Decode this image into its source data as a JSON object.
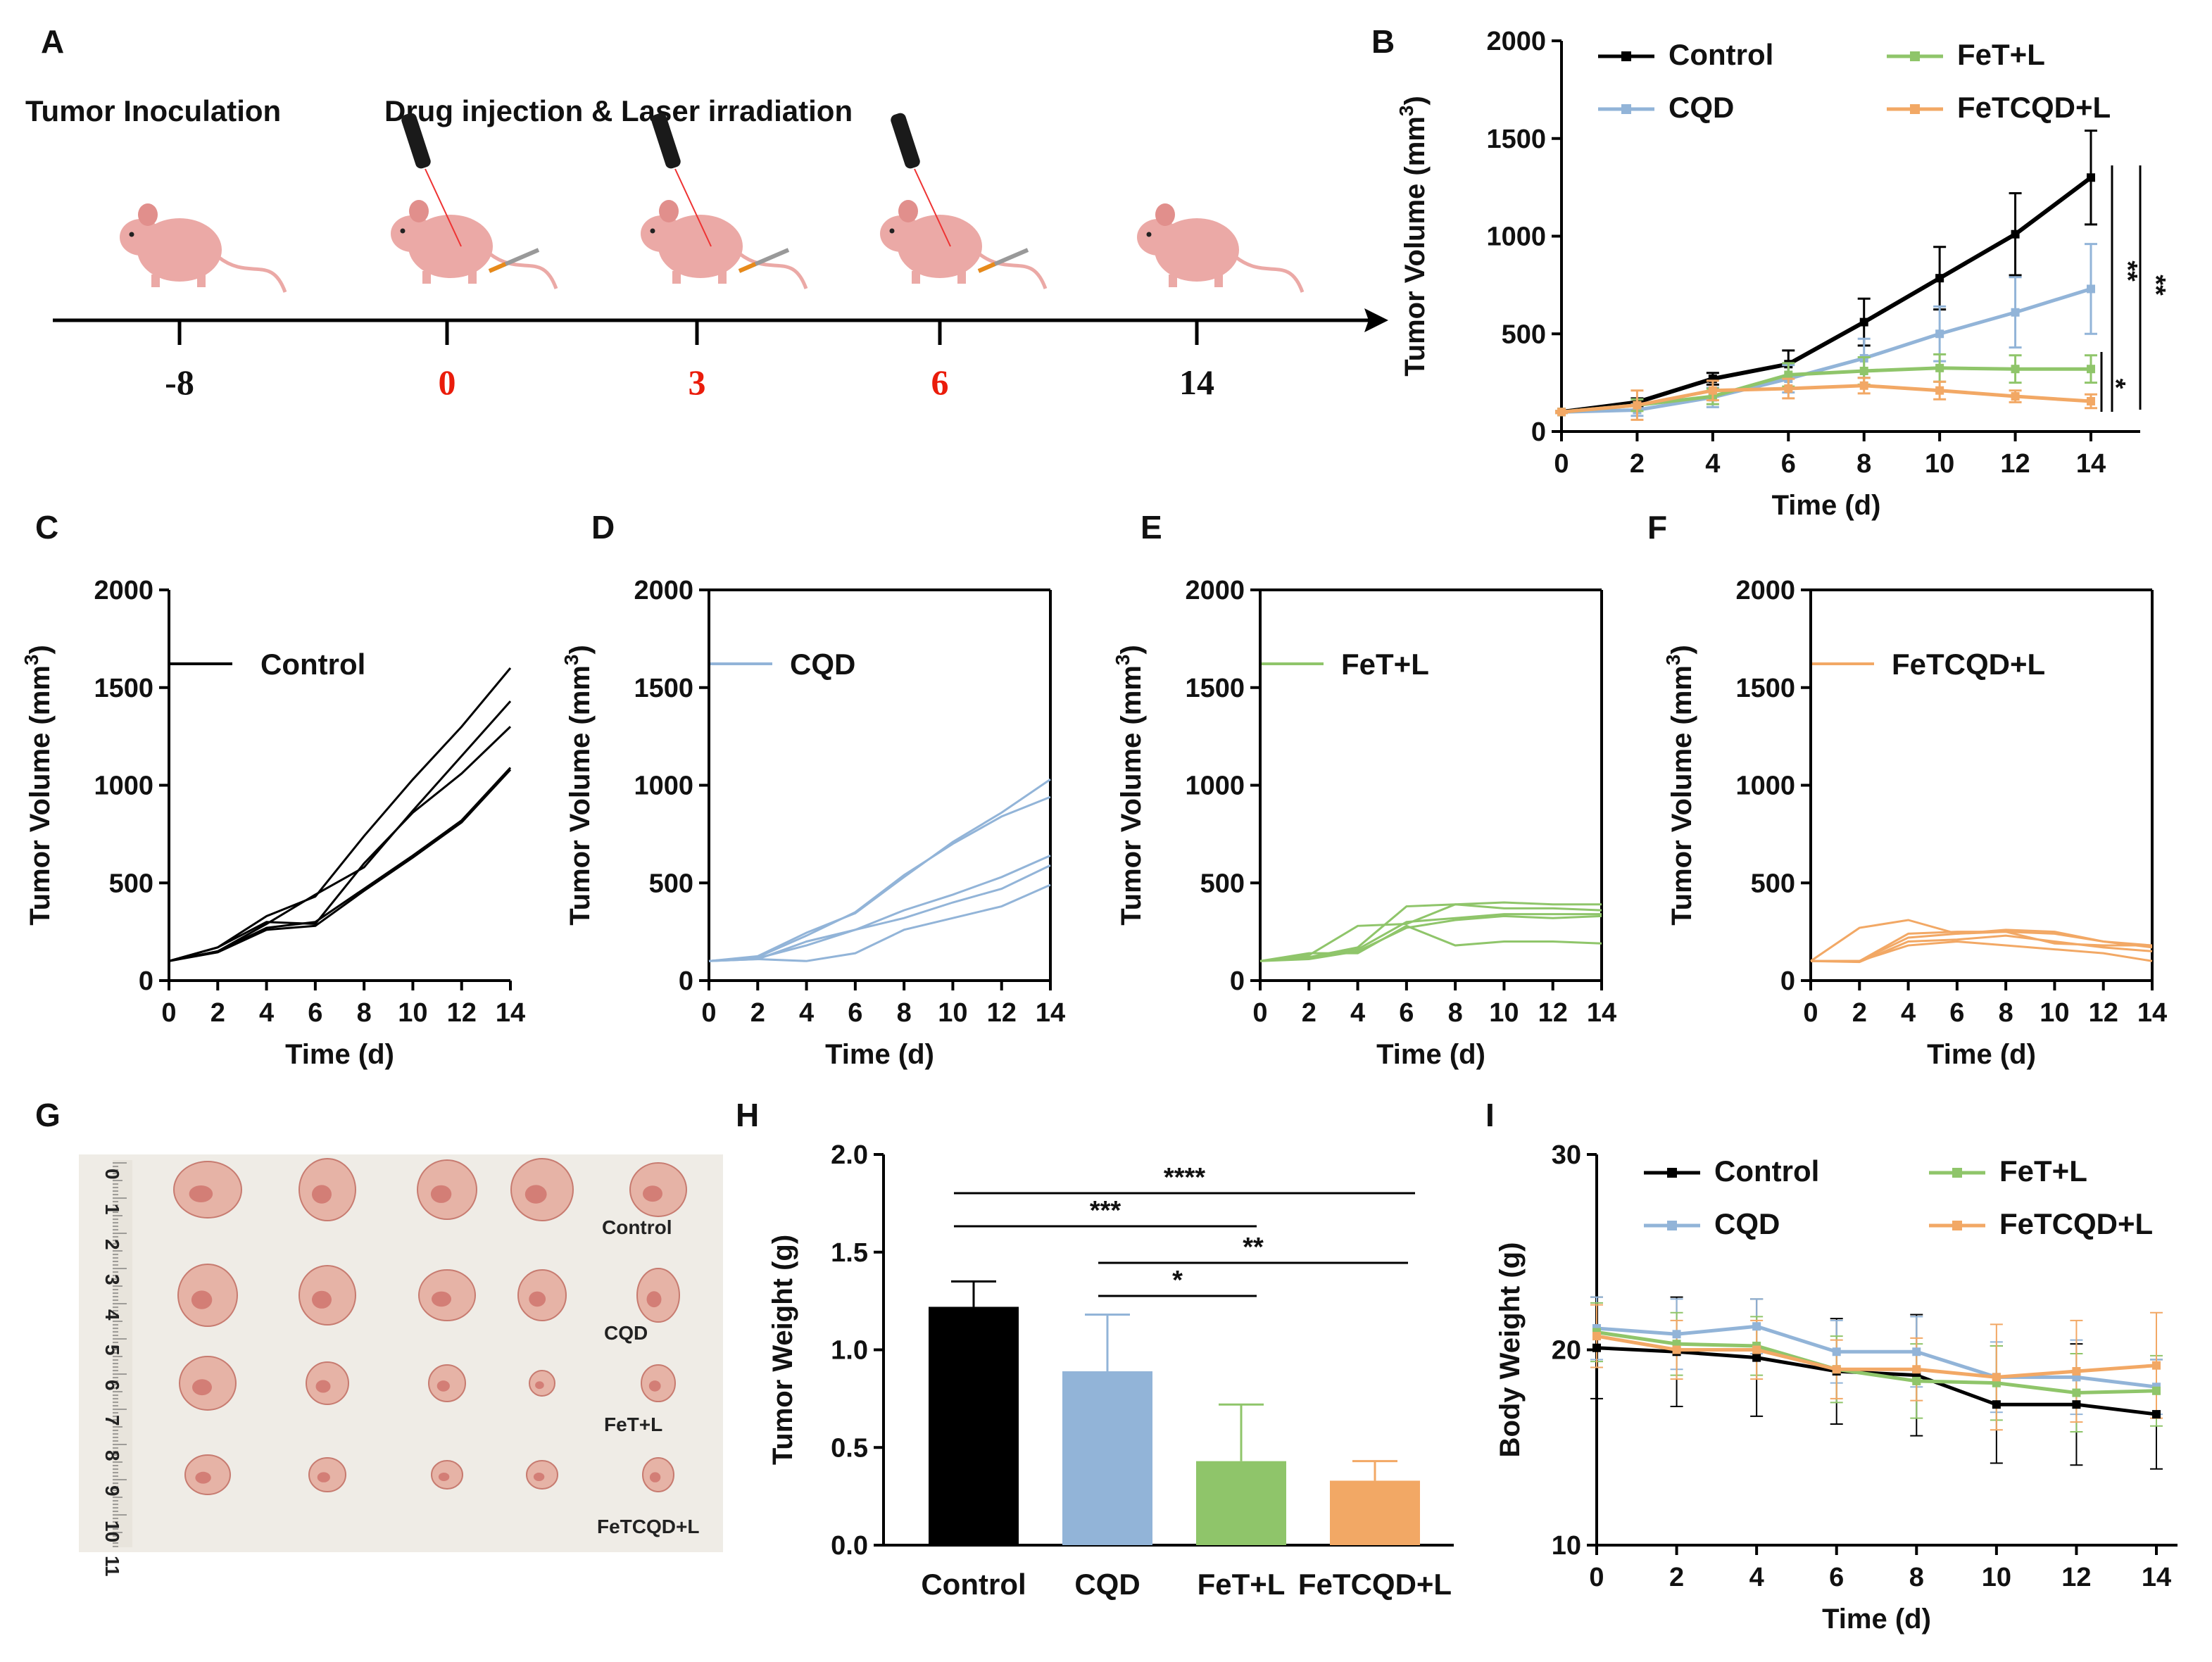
{
  "colors": {
    "control": "#000000",
    "cqd": "#92b4d8",
    "fetl": "#8fc56a",
    "fetcqdl": "#f2a865",
    "red": "#ea1c0b",
    "mouse": "#eba9a6",
    "axis": "#000000"
  },
  "panels": {
    "A": "A",
    "B": "B",
    "C": "C",
    "D": "D",
    "E": "E",
    "F": "F",
    "G": "G",
    "H": "H",
    "I": "I"
  },
  "timeline": {
    "left_label": "Tumor Inoculation",
    "right_label": "Drug injection & Laser irradiation",
    "days": [
      {
        "label": "-8",
        "red": false
      },
      {
        "label": "0",
        "red": true
      },
      {
        "label": "3",
        "red": true
      },
      {
        "label": "6",
        "red": true
      },
      {
        "label": "14",
        "red": false
      }
    ],
    "icons": [
      "mouse-icon",
      "laser-icon",
      "syringe-icon"
    ]
  },
  "photo": {
    "row_labels": [
      "Control",
      "CQD",
      "FeT+L",
      "FeTCQD+L"
    ],
    "ruler_numbers": [
      "0",
      "1",
      "2",
      "3",
      "4",
      "5",
      "6",
      "7",
      "8",
      "9",
      "10",
      "11"
    ]
  },
  "chart_data": [
    {
      "id": "B",
      "type": "line",
      "ylabel": "Tumor Volume (mm³)",
      "ylabel_main": "Tumor Volume (mm",
      "ylabel_sup": "3",
      "ylabel_close": ")",
      "xlabel": "Time (d)",
      "x": [
        0,
        2,
        4,
        6,
        8,
        10,
        12,
        14
      ],
      "ylim": [
        0,
        2000
      ],
      "yticks": [
        "0",
        "500",
        "1000",
        "1500",
        "2000"
      ],
      "xticks": [
        "0",
        "2",
        "4",
        "6",
        "8",
        "10",
        "12",
        "14"
      ],
      "legend": [
        "Control",
        "CQD",
        "FeT+L",
        "FeTCQD+L"
      ],
      "series": [
        {
          "name": "Control",
          "values": [
            100,
            150,
            270,
            345,
            560,
            785,
            1010,
            1300
          ],
          "errors": [
            5,
            20,
            30,
            70,
            120,
            160,
            210,
            240
          ]
        },
        {
          "name": "CQD",
          "values": [
            100,
            110,
            175,
            270,
            375,
            500,
            610,
            730
          ],
          "errors": [
            5,
            30,
            50,
            70,
            100,
            140,
            180,
            230
          ]
        },
        {
          "name": "FeT+L",
          "values": [
            100,
            135,
            180,
            290,
            310,
            325,
            320,
            320
          ],
          "errors": [
            5,
            30,
            40,
            60,
            70,
            70,
            70,
            70
          ]
        },
        {
          "name": "FeTCQD+L",
          "values": [
            100,
            135,
            210,
            220,
            235,
            210,
            180,
            155
          ],
          "errors": [
            5,
            75,
            50,
            50,
            40,
            45,
            30,
            35
          ]
        }
      ],
      "significance": [
        "**",
        "**",
        "*"
      ]
    },
    {
      "id": "C",
      "type": "line",
      "legend": "Control",
      "ylabel_main": "Tumor Volume (mm",
      "ylabel_sup": "3",
      "ylabel_close": ")",
      "xlabel": "Time (d)",
      "x": [
        0,
        2,
        4,
        6,
        8,
        10,
        12,
        14
      ],
      "ylim": [
        0,
        2000
      ],
      "yticks": [
        "0",
        "500",
        "1000",
        "1500",
        "2000"
      ],
      "xticks": [
        "0",
        "2",
        "4",
        "6",
        "8",
        "10",
        "12",
        "14"
      ],
      "series": [
        {
          "values": [
            100,
            170,
            330,
            430,
            740,
            1030,
            1300,
            1600
          ]
        },
        {
          "values": [
            100,
            150,
            290,
            440,
            580,
            870,
            1150,
            1430
          ]
        },
        {
          "values": [
            100,
            170,
            300,
            290,
            600,
            860,
            1060,
            1300
          ]
        },
        {
          "values": [
            100,
            150,
            270,
            300,
            470,
            640,
            820,
            1090
          ]
        },
        {
          "values": [
            100,
            145,
            260,
            280,
            460,
            630,
            810,
            1080
          ]
        }
      ]
    },
    {
      "id": "D",
      "type": "line",
      "legend": "CQD",
      "ylabel_main": "Tumor Volume (mm",
      "ylabel_sup": "3",
      "ylabel_close": ")",
      "xlabel": "Time (d)",
      "x": [
        0,
        2,
        4,
        6,
        8,
        10,
        12,
        14
      ],
      "ylim": [
        0,
        2000
      ],
      "yticks": [
        "0",
        "500",
        "1000",
        "1500",
        "2000"
      ],
      "xticks": [
        "0",
        "2",
        "4",
        "6",
        "8",
        "10",
        "12",
        "14"
      ],
      "series": [
        {
          "values": [
            100,
            125,
            245,
            345,
            530,
            710,
            860,
            1030
          ]
        },
        {
          "values": [
            100,
            120,
            230,
            350,
            540,
            700,
            840,
            940
          ]
        },
        {
          "values": [
            100,
            110,
            200,
            260,
            360,
            440,
            530,
            640
          ]
        },
        {
          "values": [
            100,
            115,
            180,
            260,
            320,
            400,
            470,
            590
          ]
        },
        {
          "values": [
            100,
            110,
            100,
            140,
            260,
            320,
            380,
            490
          ]
        }
      ]
    },
    {
      "id": "E",
      "type": "line",
      "legend": "FeT+L",
      "ylabel_main": "Tumor Volume (mm",
      "ylabel_sup": "3",
      "ylabel_close": ")",
      "xlabel": "Time (d)",
      "x": [
        0,
        2,
        4,
        6,
        8,
        10,
        12,
        14
      ],
      "ylim": [
        0,
        2000
      ],
      "yticks": [
        "0",
        "500",
        "1000",
        "1500",
        "2000"
      ],
      "xticks": [
        "0",
        "2",
        "4",
        "6",
        "8",
        "10",
        "12",
        "14"
      ],
      "series": [
        {
          "values": [
            100,
            130,
            280,
            290,
            390,
            400,
            390,
            390
          ]
        },
        {
          "values": [
            100,
            120,
            170,
            380,
            390,
            370,
            370,
            360
          ]
        },
        {
          "values": [
            100,
            120,
            160,
            300,
            320,
            340,
            340,
            340
          ]
        },
        {
          "values": [
            100,
            110,
            150,
            270,
            310,
            330,
            320,
            330
          ]
        },
        {
          "values": [
            100,
            140,
            140,
            280,
            180,
            200,
            200,
            190
          ]
        }
      ]
    },
    {
      "id": "F",
      "type": "line",
      "legend": "FeTCQD+L",
      "ylabel_main": "Tumor Volume (mm",
      "ylabel_sup": "3",
      "ylabel_close": ")",
      "xlabel": "Time (d)",
      "x": [
        0,
        2,
        4,
        6,
        8,
        10,
        12,
        14
      ],
      "ylim": [
        0,
        2000
      ],
      "yticks": [
        "0",
        "500",
        "1000",
        "1500",
        "2000"
      ],
      "xticks": [
        "0",
        "2",
        "4",
        "6",
        "8",
        "10",
        "12",
        "14"
      ],
      "series": [
        {
          "values": [
            100,
            270,
            310,
            240,
            260,
            250,
            200,
            170
          ]
        },
        {
          "values": [
            100,
            100,
            240,
            250,
            250,
            240,
            200,
            180
          ]
        },
        {
          "values": [
            100,
            100,
            220,
            240,
            250,
            190,
            180,
            180
          ]
        },
        {
          "values": [
            100,
            95,
            200,
            210,
            230,
            200,
            170,
            150
          ]
        },
        {
          "values": [
            100,
            100,
            180,
            200,
            180,
            160,
            140,
            100
          ]
        }
      ]
    },
    {
      "id": "H",
      "type": "bar",
      "ylabel": "Tumor Weight (g)",
      "categories": [
        "Control",
        "CQD",
        "FeT+L",
        "FeTCQD+L"
      ],
      "values": [
        1.22,
        0.89,
        0.43,
        0.33
      ],
      "errors": [
        0.13,
        0.29,
        0.29,
        0.1
      ],
      "ylim": [
        0,
        2.0
      ],
      "yticks": [
        "0.0",
        "0.5",
        "1.0",
        "1.5",
        "2.0"
      ],
      "significance": [
        {
          "label": "****",
          "from": 0,
          "to": 3
        },
        {
          "label": "***",
          "from": 0,
          "to": 2
        },
        {
          "label": "**",
          "from": 1,
          "to": 3
        },
        {
          "label": "*",
          "from": 1,
          "to": 2
        }
      ]
    },
    {
      "id": "I",
      "type": "line",
      "ylabel": "Body Weight (g)",
      "xlabel": "Time (d)",
      "x": [
        0,
        2,
        4,
        6,
        8,
        10,
        12,
        14
      ],
      "ylim": [
        10,
        30
      ],
      "yticks": [
        "10",
        "20",
        "30"
      ],
      "xticks": [
        "0",
        "2",
        "4",
        "6",
        "8",
        "10",
        "12",
        "14"
      ],
      "legend": [
        "Control",
        "CQD",
        "FeT+L",
        "FeTCQD+L"
      ],
      "series": [
        {
          "name": "Control",
          "values": [
            20.1,
            19.9,
            19.6,
            18.9,
            18.7,
            17.2,
            17.2,
            16.7
          ],
          "errors": [
            2.6,
            2.8,
            3.0,
            2.7,
            3.1,
            3.0,
            3.1,
            2.8
          ]
        },
        {
          "name": "CQD",
          "values": [
            21.1,
            20.8,
            21.2,
            19.9,
            19.9,
            18.6,
            18.6,
            18.1
          ],
          "errors": [
            1.6,
            1.8,
            1.4,
            1.6,
            1.8,
            1.8,
            1.9,
            1.4
          ]
        },
        {
          "name": "FeT+L",
          "values": [
            20.9,
            20.3,
            20.2,
            19.0,
            18.4,
            18.3,
            17.8,
            17.9
          ],
          "errors": [
            1.5,
            1.6,
            1.5,
            1.7,
            1.9,
            1.9,
            2.0,
            1.8
          ]
        },
        {
          "name": "FeTCQD+L",
          "values": [
            20.7,
            20.0,
            20.0,
            19.0,
            19.0,
            18.6,
            18.9,
            19.2
          ],
          "errors": [
            1.6,
            1.5,
            1.5,
            1.5,
            1.6,
            2.7,
            2.6,
            2.7
          ]
        }
      ]
    }
  ]
}
